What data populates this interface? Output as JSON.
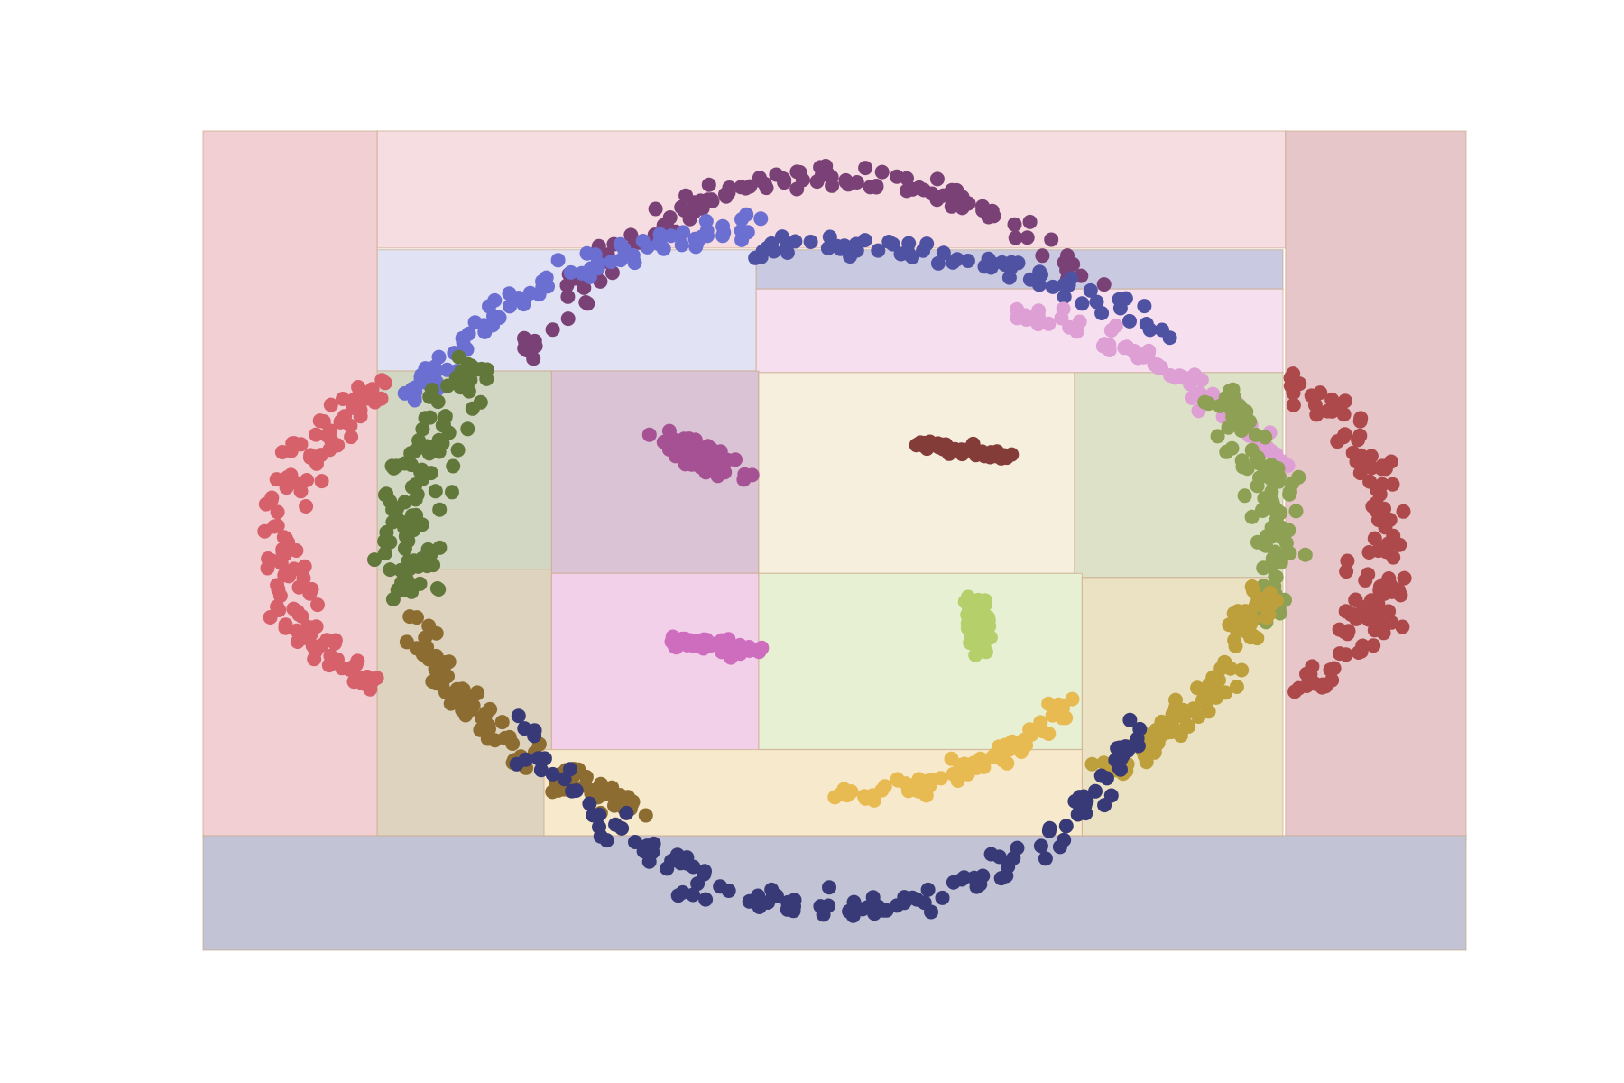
{
  "chart_data": {
    "type": "scatter",
    "title": "",
    "xlabel": "",
    "ylabel": "",
    "xlim": [
      0,
      1
    ],
    "ylim": [
      0,
      1
    ],
    "grid": false,
    "legend": "none",
    "axes_visible": false,
    "regions": [
      {
        "name": "outer-left",
        "color": "#f2cfd3",
        "x0": 0.0,
        "x1": 0.138,
        "y0": 0.138,
        "y1": 1.0
      },
      {
        "name": "outer-top",
        "color": "#f6dde1",
        "x0": 0.138,
        "x1": 0.857,
        "y0": 0.857,
        "y1": 1.0
      },
      {
        "name": "outer-right",
        "color": "#e6c6c9",
        "x0": 0.857,
        "x1": 1.0,
        "y0": 0.134,
        "y1": 1.0
      },
      {
        "name": "outer-bottom",
        "color": "#c2c3d5",
        "x0": 0.0,
        "x1": 1.0,
        "y0": 0.0,
        "y1": 0.14
      },
      {
        "name": "top-left",
        "color": "#e1e2f4",
        "x0": 0.138,
        "x1": 0.438,
        "y0": 0.707,
        "y1": 0.855
      },
      {
        "name": "top-right-strip",
        "color": "#c9c9e1",
        "x0": 0.438,
        "x1": 0.855,
        "y0": 0.807,
        "y1": 0.855
      },
      {
        "name": "upper-pink",
        "color": "#f6e0f0",
        "x0": 0.438,
        "x1": 0.855,
        "y0": 0.705,
        "y1": 0.807
      },
      {
        "name": "left-green",
        "color": "#d2d7c3",
        "x0": 0.138,
        "x1": 0.276,
        "y0": 0.465,
        "y1": 0.707
      },
      {
        "name": "center-mauve",
        "color": "#d9c3d4",
        "x0": 0.276,
        "x1": 0.44,
        "y0": 0.46,
        "y1": 0.707
      },
      {
        "name": "center-cream",
        "color": "#f6efde",
        "x0": 0.44,
        "x1": 0.69,
        "y0": 0.46,
        "y1": 0.705
      },
      {
        "name": "right-green",
        "color": "#dce1c8",
        "x0": 0.69,
        "x1": 0.855,
        "y0": 0.455,
        "y1": 0.705
      },
      {
        "name": "left-tan",
        "color": "#ddd3be",
        "x0": 0.138,
        "x1": 0.276,
        "y0": 0.14,
        "y1": 0.465
      },
      {
        "name": "center-pink",
        "color": "#f2d0ea",
        "x0": 0.276,
        "x1": 0.44,
        "y0": 0.244,
        "y1": 0.46
      },
      {
        "name": "center-lightgreen",
        "color": "#e7f0d3",
        "x0": 0.44,
        "x1": 0.696,
        "y0": 0.245,
        "y1": 0.46
      },
      {
        "name": "right-sand",
        "color": "#ebe2c3",
        "x0": 0.696,
        "x1": 0.855,
        "y0": 0.14,
        "y1": 0.455
      },
      {
        "name": "bottom-yellow",
        "color": "#f7e9cb",
        "x0": 0.27,
        "x1": 0.696,
        "y0": 0.14,
        "y1": 0.245
      }
    ],
    "series": [
      {
        "color": "#7a4177",
        "shape": "arc",
        "center": [
          0.5,
          0.5
        ],
        "radii": [
          0.28,
          0.445
        ],
        "angle_deg": [
          45,
          150
        ],
        "count": 130,
        "spread": 0.008
      },
      {
        "color": "#6b6fd1",
        "shape": "arc",
        "center": [
          0.5,
          0.5
        ],
        "radii": [
          0.37,
          0.39
        ],
        "angle_deg": [
          100,
          155
        ],
        "count": 90,
        "spread": 0.007
      },
      {
        "color": "#4f52a3",
        "shape": "arc",
        "center": [
          0.5,
          0.5
        ],
        "radii": [
          0.37,
          0.36
        ],
        "angle_deg": [
          45,
          100
        ],
        "count": 70,
        "spread": 0.006
      },
      {
        "color": "#de9fd5",
        "shape": "arc",
        "center": [
          0.5,
          0.5
        ],
        "radii": [
          0.37,
          0.3
        ],
        "angle_deg": [
          18,
          68
        ],
        "count": 75,
        "spread": 0.006
      },
      {
        "color": "#62773a",
        "shape": "arc",
        "center": [
          0.5,
          0.5
        ],
        "radii": [
          0.34,
          0.37
        ],
        "angle_deg": [
          145,
          190
        ],
        "count": 110,
        "spread": 0.011
      },
      {
        "color": "#8da053",
        "shape": "arc",
        "center": [
          0.5,
          0.5
        ],
        "radii": [
          0.35,
          0.37
        ],
        "angle_deg": [
          -15,
          30
        ],
        "count": 100,
        "spread": 0.01
      },
      {
        "color": "#8c6c31",
        "shape": "arc",
        "center": [
          0.5,
          0.5
        ],
        "radii": [
          0.345,
          0.37
        ],
        "angle_deg": [
          195,
          242
        ],
        "count": 95,
        "spread": 0.008
      },
      {
        "color": "#bda03c",
        "shape": "arc",
        "center": [
          0.5,
          0.5
        ],
        "radii": [
          0.345,
          0.36
        ],
        "angle_deg": [
          -52,
          -10
        ],
        "count": 95,
        "spread": 0.008
      },
      {
        "color": "#e8ba52",
        "shape": "arc",
        "center": [
          0.5,
          0.5
        ],
        "radii": [
          0.24,
          0.31
        ],
        "angle_deg": [
          -90,
          -38
        ],
        "count": 80,
        "spread": 0.006
      },
      {
        "color": "#383a78",
        "shape": "arc",
        "center": [
          0.5,
          0.5
        ],
        "radii": [
          0.28,
          0.45
        ],
        "angle_deg": [
          210,
          330
        ],
        "count": 130,
        "spread": 0.008
      },
      {
        "color": "#d6616b",
        "shape": "arc",
        "center": [
          0.5,
          0.5
        ],
        "radii": [
          0.44,
          0.33
        ],
        "angle_deg": [
          145,
          213
        ],
        "count": 120,
        "spread": 0.01
      },
      {
        "color": "#ad494a",
        "shape": "arc",
        "center": [
          0.5,
          0.5
        ],
        "radii": [
          0.44,
          0.34
        ],
        "angle_deg": [
          -33,
          35
        ],
        "count": 120,
        "spread": 0.01
      },
      {
        "color": "#a55194",
        "shape": "blob",
        "center": [
          0.397,
          0.6
        ],
        "extent": [
          0.03,
          0.08
        ],
        "tilt_deg": 55,
        "count": 60
      },
      {
        "color": "#843c39",
        "shape": "blob",
        "center": [
          0.602,
          0.61
        ],
        "extent": [
          0.08,
          0.012
        ],
        "tilt_deg": -12,
        "count": 45
      },
      {
        "color": "#ce6dbd",
        "shape": "blob",
        "center": [
          0.406,
          0.372
        ],
        "extent": [
          0.075,
          0.015
        ],
        "tilt_deg": -10,
        "count": 60
      },
      {
        "color": "#b5cf6b",
        "shape": "blob",
        "center": [
          0.614,
          0.4
        ],
        "extent": [
          0.018,
          0.06
        ],
        "tilt_deg": 5,
        "count": 60
      }
    ]
  }
}
